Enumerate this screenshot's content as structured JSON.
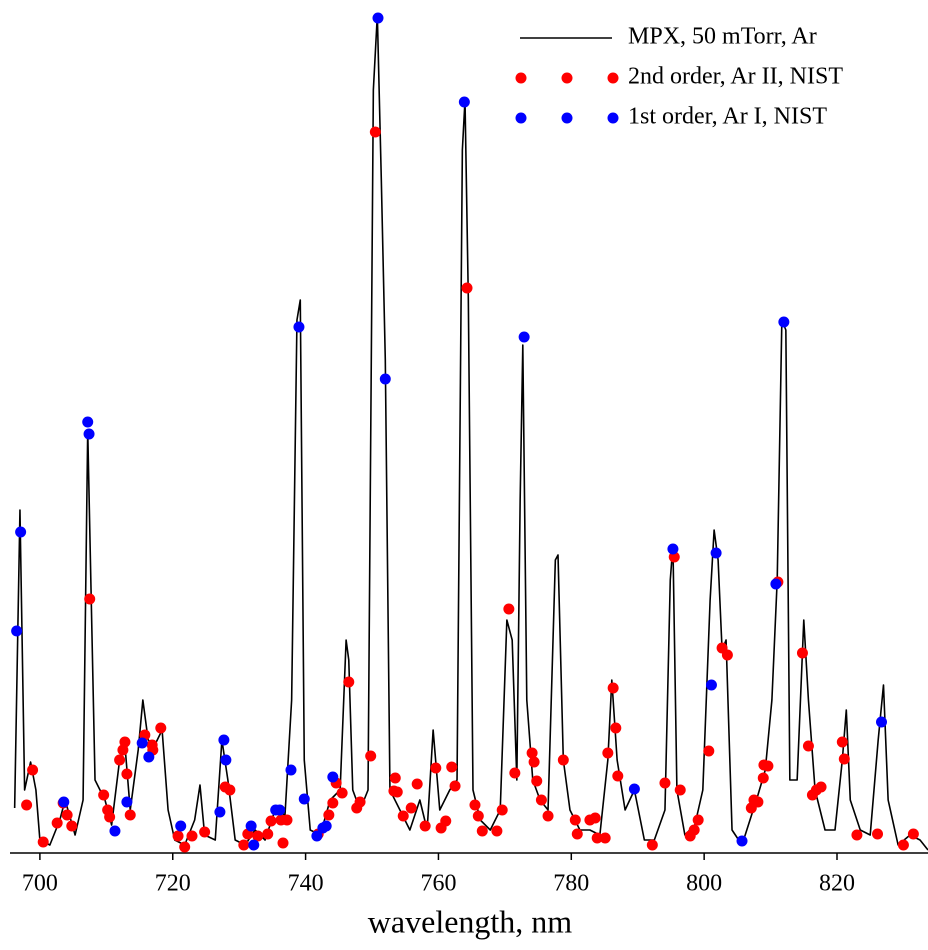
{
  "chart_data": {
    "type": "line",
    "x_label": "wavelength, nm",
    "xlim": [
      695.5,
      833.7
    ],
    "xticks": [
      700,
      720,
      740,
      760,
      780,
      800,
      820
    ],
    "ylim": [
      0,
      850
    ],
    "legend": "upper right",
    "series": [
      {
        "name": "MPX, 50 mTorr, Ar",
        "color": "#000000",
        "style": "line",
        "x": [
          696.2,
          697.0,
          697.7,
          698.6,
          699.4,
          700.0,
          701.5,
          703.0,
          703.8,
          705.3,
          706.5,
          707.2,
          707.7,
          708.3,
          709.8,
          710.8,
          712.0,
          712.8,
          713.6,
          714.8,
          715.5,
          716.3,
          717.3,
          718.4,
          719.3,
          720.3,
          721.8,
          723.3,
          724.1,
          724.8,
          726.4,
          727.4,
          728.3,
          729.4,
          730.9,
          732.4,
          733.9,
          735.4,
          736.9,
          737.9,
          738.7,
          739.2,
          739.8,
          740.7,
          742.2,
          743.7,
          745.2,
          746.1,
          746.5,
          747.1,
          748.2,
          749.4,
          750.2,
          750.8,
          751.4,
          752.0,
          752.7,
          754.2,
          755.7,
          757.2,
          758.3,
          759.2,
          760.2,
          761.7,
          762.8,
          763.6,
          764.0,
          764.5,
          765.2,
          766.3,
          767.8,
          769.3,
          770.3,
          771.1,
          771.8,
          772.3,
          772.7,
          773.3,
          774.2,
          775.3,
          776.5,
          777.6,
          778.0,
          778.8,
          779.8,
          781.3,
          782.8,
          784.3,
          785.5,
          786.1,
          786.9,
          788.1,
          789.5,
          791.0,
          792.5,
          794.1,
          794.9,
          795.3,
          795.9,
          797.1,
          798.6,
          799.8,
          800.9,
          801.5,
          802.1,
          802.7,
          803.3,
          804.2,
          805.7,
          806.9,
          808.1,
          809.2,
          810.2,
          811.0,
          811.7,
          812.3,
          812.9,
          814.0,
          815.0,
          815.7,
          816.7,
          818.2,
          819.7,
          820.8,
          821.4,
          822.0,
          823.5,
          825.0,
          826.2,
          827.0,
          827.7,
          829.2,
          831.0,
          832.5,
          833.7
        ],
        "values": [
          45,
          343,
          63,
          91,
          63,
          13,
          8,
          33,
          53,
          18,
          53,
          423,
          263,
          73,
          53,
          28,
          93,
          108,
          43,
          103,
          153,
          113,
          108,
          123,
          43,
          13,
          8,
          33,
          68,
          18,
          13,
          113,
          73,
          13,
          8,
          23,
          13,
          43,
          38,
          153,
          533,
          553,
          93,
          23,
          18,
          53,
          63,
          213,
          193,
          63,
          43,
          63,
          763,
          838,
          673,
          493,
          63,
          43,
          23,
          53,
          23,
          123,
          43,
          63,
          73,
          703,
          753,
          553,
          63,
          33,
          23,
          43,
          233,
          213,
          73,
          353,
          508,
          153,
          73,
          53,
          43,
          293,
          298,
          93,
          43,
          23,
          23,
          18,
          93,
          173,
          93,
          43,
          63,
          13,
          13,
          43,
          273,
          308,
          63,
          18,
          28,
          63,
          253,
          323,
          293,
          203,
          213,
          23,
          8,
          33,
          58,
          83,
          153,
          273,
          533,
          523,
          73,
          73,
          233,
          153,
          63,
          23,
          23,
          93,
          143,
          53,
          23,
          18,
          113,
          168,
          53,
          8,
          18,
          13,
          3
        ]
      },
      {
        "name": "2nd order, Ar II, NIST",
        "color": "#ff0000",
        "style": "dots",
        "x": [
          698.0,
          698.9,
          700.5,
          702.6,
          703.5,
          704.1,
          704.8,
          707.5,
          709.6,
          710.2,
          710.5,
          712.0,
          712.5,
          712.8,
          713.1,
          713.6,
          715.8,
          716.9,
          717.0,
          718.2,
          720.8,
          721.8,
          722.9,
          724.8,
          727.9,
          728.6,
          730.7,
          731.3,
          732.8,
          734.3,
          734.8,
          736.3,
          736.6,
          737.2,
          741.9,
          743.5,
          744.1,
          744.6,
          745.5,
          746.5,
          747.7,
          748.2,
          749.8,
          750.5,
          753.3,
          753.5,
          753.8,
          754.7,
          755.9,
          756.8,
          758.0,
          759.6,
          760.4,
          761.1,
          762.0,
          762.5,
          764.3,
          765.5,
          766.0,
          766.6,
          768.8,
          769.6,
          770.6,
          771.5,
          774.1,
          774.4,
          774.8,
          775.5,
          776.5,
          778.8,
          780.6,
          780.9,
          782.8,
          783.6,
          783.9,
          785.1,
          785.5,
          786.3,
          786.7,
          787.0,
          792.2,
          794.1,
          795.5,
          796.4,
          797.9,
          798.5,
          799.1,
          800.7,
          802.7,
          803.5,
          807.1,
          807.5,
          808.1,
          808.9,
          809.0,
          809.6,
          811.1,
          814.8,
          815.7,
          816.3,
          816.9,
          817.6,
          820.8,
          821.1,
          823.0,
          826.1,
          830.0,
          831.5
        ],
        "values": [
          48,
          83,
          11,
          30,
          50,
          38,
          27,
          254,
          58,
          43,
          36,
          93,
          103,
          111,
          79,
          38,
          118,
          108,
          103,
          125,
          17,
          6,
          17,
          21,
          66,
          63,
          8,
          19,
          17,
          19,
          32,
          33,
          10,
          33,
          19,
          38,
          50,
          70,
          60,
          171,
          45,
          51,
          97,
          721,
          62,
          75,
          61,
          37,
          45,
          69,
          27,
          85,
          25,
          32,
          86,
          67,
          565,
          48,
          37,
          22,
          22,
          43,
          244,
          80,
          100,
          91,
          72,
          53,
          37,
          93,
          33,
          19,
          33,
          35,
          15,
          15,
          100,
          165,
          125,
          77,
          8,
          70,
          296,
          63,
          17,
          23,
          33,
          102,
          205,
          198,
          45,
          53,
          51,
          75,
          88,
          87,
          271,
          200,
          107,
          58,
          63,
          66,
          111,
          94,
          18,
          19,
          8,
          19
        ]
      },
      {
        "name": "1st order, Ar I, NIST",
        "color": "#0000ff",
        "style": "dots",
        "x": [
          696.5,
          697.1,
          707.2,
          707.4,
          703.6,
          711.3,
          713.1,
          715.4,
          716.4,
          721.2,
          727.1,
          727.7,
          728.0,
          731.8,
          732.2,
          735.5,
          736.1,
          737.8,
          739.0,
          739.8,
          741.7,
          742.6,
          743.1,
          744.1,
          750.9,
          752.0,
          763.9,
          772.9,
          789.5,
          795.3,
          801.1,
          801.8,
          805.7,
          810.8,
          812.0,
          826.7
        ],
        "values": [
          222,
          321,
          431,
          419,
          51,
          22,
          51,
          110,
          96,
          27,
          41,
          113,
          93,
          27,
          8,
          43,
          43,
          83,
          526,
          54,
          17,
          25,
          27,
          76,
          835,
          474,
          751,
          516,
          64,
          304,
          168,
          300,
          12,
          269,
          531,
          131
        ]
      }
    ]
  }
}
